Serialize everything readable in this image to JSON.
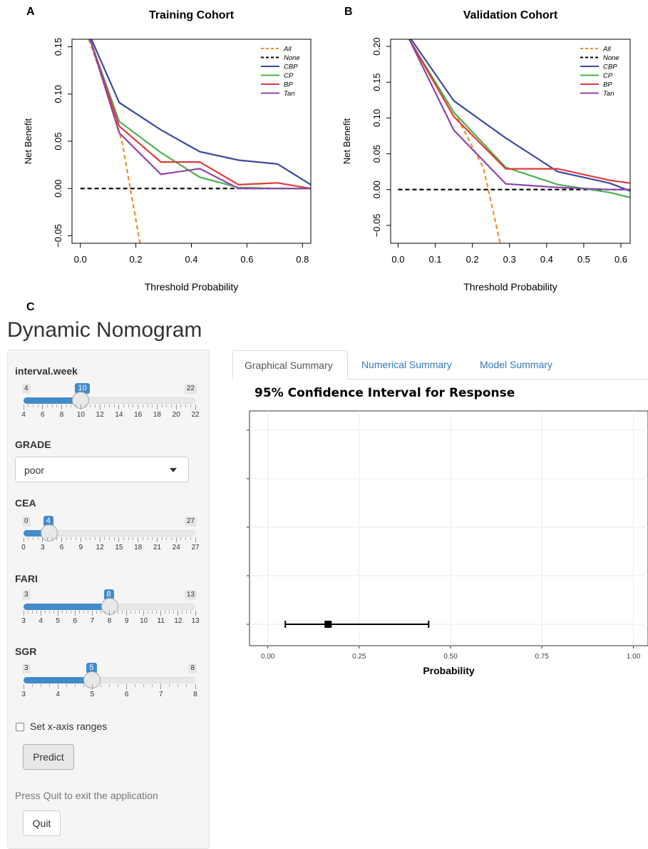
{
  "panels": {
    "a": "A",
    "b": "B",
    "c": "C"
  },
  "chart_data": [
    {
      "type": "line",
      "title": "Training Cohort",
      "xlabel": "Threshold Probability",
      "ylabel": "Net Benefit",
      "xlim": [
        -0.03,
        0.83
      ],
      "ylim": [
        -0.058,
        0.158
      ],
      "xticks": [
        "0.0",
        "0.2",
        "0.4",
        "0.6",
        "0.8"
      ],
      "xtick_values": [
        0.0,
        0.2,
        0.4,
        0.6,
        0.8
      ],
      "yticks": [
        "−0.05",
        "0.00",
        "0.05",
        "0.10",
        "0.15"
      ],
      "ytick_values": [
        -0.05,
        0.0,
        0.05,
        0.1,
        0.15
      ],
      "legend_position": "top-right",
      "series": [
        {
          "name": "All",
          "color": "#f28c28",
          "dash": true,
          "points": [
            [
              0.03,
              0.158
            ],
            [
              0.1,
              0.1
            ],
            [
              0.15,
              0.05
            ],
            [
              0.18,
              0.0
            ],
            [
              0.215,
              -0.058
            ]
          ]
        },
        {
          "name": "None",
          "color": "#000000",
          "dash": true,
          "points": [
            [
              0.0,
              0.0
            ],
            [
              0.83,
              0.0
            ]
          ]
        },
        {
          "name": "CBP",
          "color": "#3b4aa3",
          "dash": false,
          "points": [
            [
              0.04,
              0.158
            ],
            [
              0.14,
              0.091
            ],
            [
              0.29,
              0.062
            ],
            [
              0.43,
              0.039
            ],
            [
              0.57,
              0.03
            ],
            [
              0.71,
              0.026
            ],
            [
              0.83,
              0.004
            ]
          ]
        },
        {
          "name": "CP",
          "color": "#4ab34a",
          "dash": false,
          "points": [
            [
              0.035,
              0.158
            ],
            [
              0.14,
              0.071
            ],
            [
              0.29,
              0.038
            ],
            [
              0.43,
              0.012
            ],
            [
              0.57,
              0.001
            ],
            [
              0.71,
              0.0
            ],
            [
              0.83,
              0.0
            ]
          ]
        },
        {
          "name": "BP",
          "color": "#e03a3a",
          "dash": false,
          "points": [
            [
              0.035,
              0.158
            ],
            [
              0.14,
              0.066
            ],
            [
              0.29,
              0.028
            ],
            [
              0.43,
              0.028
            ],
            [
              0.57,
              0.004
            ],
            [
              0.71,
              0.006
            ],
            [
              0.83,
              0.0
            ]
          ]
        },
        {
          "name": "Tan",
          "color": "#8e44ad",
          "dash": false,
          "points": [
            [
              0.035,
              0.158
            ],
            [
              0.14,
              0.059
            ],
            [
              0.29,
              0.015
            ],
            [
              0.43,
              0.021
            ],
            [
              0.57,
              0.0
            ],
            [
              0.71,
              0.0
            ],
            [
              0.83,
              0.0
            ]
          ]
        }
      ]
    },
    {
      "type": "line",
      "title": "Validation Cohort",
      "xlabel": "Threshold Probability",
      "ylabel": "Net Benefit",
      "xlim": [
        -0.02,
        0.625
      ],
      "ylim": [
        -0.075,
        0.21
      ],
      "xticks": [
        "0.0",
        "0.1",
        "0.2",
        "0.3",
        "0.4",
        "0.5",
        "0.6"
      ],
      "xtick_values": [
        0.0,
        0.1,
        0.2,
        0.3,
        0.4,
        0.5,
        0.6
      ],
      "yticks": [
        "−0.05",
        "0.00",
        "0.05",
        "0.10",
        "0.15",
        "0.20"
      ],
      "ytick_values": [
        -0.05,
        0.0,
        0.05,
        0.1,
        0.15,
        0.2
      ],
      "legend_position": "top-right",
      "series": [
        {
          "name": "All",
          "color": "#f28c28",
          "dash": true,
          "points": [
            [
              0.03,
              0.21
            ],
            [
              0.1,
              0.15
            ],
            [
              0.16,
              0.1
            ],
            [
              0.23,
              0.03
            ],
            [
              0.275,
              -0.075
            ]
          ]
        },
        {
          "name": "None",
          "color": "#000000",
          "dash": true,
          "points": [
            [
              0.0,
              0.0
            ],
            [
              0.625,
              0.0
            ]
          ]
        },
        {
          "name": "CBP",
          "color": "#3b4aa3",
          "dash": false,
          "points": [
            [
              0.035,
              0.21
            ],
            [
              0.15,
              0.124
            ],
            [
              0.29,
              0.072
            ],
            [
              0.43,
              0.025
            ],
            [
              0.57,
              0.009
            ],
            [
              0.625,
              -0.002
            ]
          ]
        },
        {
          "name": "CP",
          "color": "#4ab34a",
          "dash": false,
          "points": [
            [
              0.03,
              0.21
            ],
            [
              0.15,
              0.108
            ],
            [
              0.29,
              0.031
            ],
            [
              0.43,
              0.007
            ],
            [
              0.57,
              -0.004
            ],
            [
              0.625,
              -0.011
            ]
          ]
        },
        {
          "name": "BP",
          "color": "#e03a3a",
          "dash": false,
          "points": [
            [
              0.03,
              0.21
            ],
            [
              0.15,
              0.102
            ],
            [
              0.29,
              0.029
            ],
            [
              0.43,
              0.029
            ],
            [
              0.57,
              0.013
            ],
            [
              0.625,
              0.009
            ]
          ]
        },
        {
          "name": "Tan",
          "color": "#8e44ad",
          "dash": false,
          "points": [
            [
              0.03,
              0.21
            ],
            [
              0.15,
              0.083
            ],
            [
              0.29,
              0.008
            ],
            [
              0.43,
              0.003
            ],
            [
              0.57,
              0.0
            ],
            [
              0.625,
              0.0
            ]
          ]
        }
      ]
    },
    {
      "type": "scatter",
      "title": "95% Confidence Interval for Response",
      "xlabel": "Probability",
      "xlim": [
        -0.05,
        1.04
      ],
      "xticks": [
        "0.00",
        "0.25",
        "0.50",
        "0.75",
        "1.00"
      ],
      "xtick_values": [
        0.0,
        0.25,
        0.5,
        0.75,
        1.0
      ],
      "grid": true,
      "point": {
        "estimate": 0.165,
        "lower": 0.048,
        "upper": 0.44
      }
    }
  ],
  "app": {
    "title": "Dynamic Nomogram",
    "sliders": [
      {
        "label": "interval.week",
        "min": 4,
        "max": 22,
        "value": 10,
        "ticks": [
          "4",
          "6",
          "8",
          "10",
          "12",
          "14",
          "16",
          "18",
          "20",
          "22"
        ]
      },
      {
        "label": "CEA",
        "min": 0,
        "max": 27,
        "value": 4,
        "ticks": [
          "0",
          "3",
          "6",
          "9",
          "12",
          "15",
          "18",
          "21",
          "24",
          "27"
        ]
      },
      {
        "label": "FARI",
        "min": 3,
        "max": 13,
        "value": 8,
        "ticks": [
          "3",
          "4",
          "5",
          "6",
          "7",
          "8",
          "9",
          "10",
          "11",
          "12",
          "13"
        ]
      },
      {
        "label": "SGR",
        "min": 3,
        "max": 8,
        "value": 5,
        "ticks": [
          "3",
          "4",
          "5",
          "6",
          "7",
          "8"
        ]
      }
    ],
    "grade": {
      "label": "GRADE",
      "value": "poor"
    },
    "checkbox_label": "Set x-axis ranges",
    "predict_label": "Predict",
    "help_text": "Press Quit to exit the application",
    "quit_label": "Quit",
    "tabs": [
      "Graphical Summary",
      "Numerical Summary",
      "Model Summary"
    ]
  }
}
